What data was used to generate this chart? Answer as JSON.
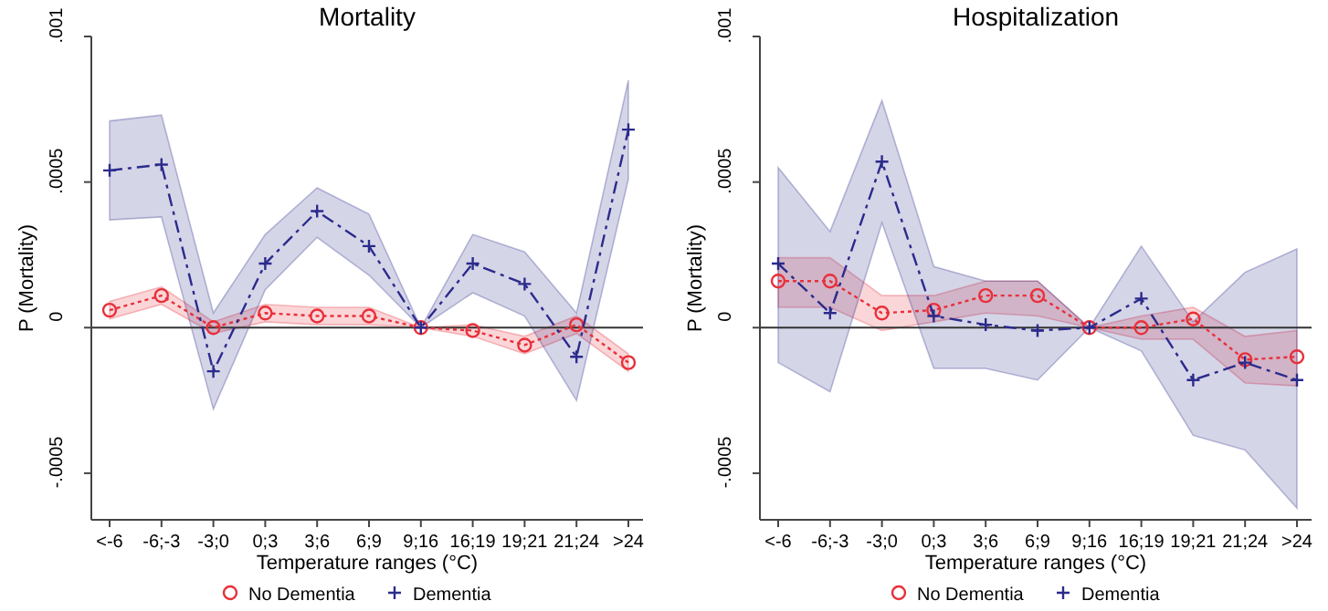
{
  "chart_data": [
    {
      "type": "line",
      "title": "Mortality",
      "xlabel": "Temperature ranges (°C)",
      "ylabel": "P (Mortality)",
      "categories": [
        "<-6",
        "-6;-3",
        "-3;0",
        "0;3",
        "3;6",
        "6;9",
        "9;16",
        "16;19",
        "19;21",
        "21;24",
        ">24"
      ],
      "ylim": [
        -0.00066,
        0.001
      ],
      "yticks": [
        {
          "value": -0.0005,
          "label": "-.0005"
        },
        0,
        {
          "value": 0.0005,
          "label": ".0005"
        },
        {
          "value": 0.001,
          "label": ".001"
        }
      ],
      "grid": false,
      "legend": "bottom",
      "ref_lines": [
        {
          "axis": "y",
          "value": 0,
          "color": "#333333"
        }
      ],
      "series": [
        {
          "name": "No Dementia",
          "color": "#e8303a",
          "marker": "circle",
          "line_style": "dotted",
          "values": [
            6e-05,
            0.00011,
            0,
            5e-05,
            4e-05,
            4e-05,
            0,
            -1e-05,
            -6e-05,
            1e-05,
            -0.00012
          ],
          "lower": [
            3e-05,
            8e-05,
            -2e-05,
            2e-05,
            1e-05,
            1e-05,
            0,
            -3e-05,
            -9e-05,
            -2e-05,
            -0.00015
          ],
          "upper": [
            9e-05,
            0.00014,
            2e-05,
            8e-05,
            7e-05,
            7e-05,
            0,
            1e-05,
            -3e-05,
            4e-05,
            -9e-05
          ]
        },
        {
          "name": "Dementia",
          "color": "#2b2b8c",
          "marker": "cross",
          "line_style": "dashed",
          "values": [
            0.00054,
            0.00056,
            -0.00015,
            0.00022,
            0.0004,
            0.00028,
            0,
            0.00022,
            0.00015,
            -0.0001,
            0.00068
          ],
          "lower": [
            0.00037,
            0.00038,
            -0.00028,
            0.00013,
            0.00031,
            0.00018,
            0,
            0.00012,
            4e-05,
            -0.00025,
            0.00051
          ],
          "upper": [
            0.00071,
            0.00073,
            5e-05,
            0.00032,
            0.00048,
            0.00039,
            0,
            0.00032,
            0.00026,
            5e-05,
            0.00085
          ]
        }
      ]
    },
    {
      "type": "line",
      "title": "Hospitalization",
      "xlabel": "Temperature ranges (°C)",
      "ylabel": "P (Mortality)",
      "categories": [
        "<-6",
        "-6;-3",
        "-3;0",
        "0;3",
        "3;6",
        "6;9",
        "9;16",
        "16;19",
        "19;21",
        "21;24",
        ">24"
      ],
      "ylim": [
        -0.00066,
        0.001
      ],
      "yticks": [
        {
          "value": -0.0005,
          "label": "-.0005"
        },
        0,
        {
          "value": 0.0005,
          "label": ".0005"
        },
        {
          "value": 0.001,
          "label": ".001"
        }
      ],
      "grid": false,
      "legend": "bottom",
      "ref_lines": [
        {
          "axis": "y",
          "value": 0,
          "color": "#333333"
        }
      ],
      "series": [
        {
          "name": "No Dementia",
          "color": "#e8303a",
          "marker": "circle",
          "line_style": "dotted",
          "values": [
            0.00016,
            0.00016,
            5e-05,
            6e-05,
            0.00011,
            0.00011,
            0,
            0,
            3e-05,
            -0.00011,
            -0.0001
          ],
          "lower": [
            7e-05,
            7e-05,
            -1e-05,
            2e-05,
            5e-05,
            4e-05,
            0,
            -4e-05,
            -4e-05,
            -0.00019,
            -0.0002
          ],
          "upper": [
            0.00024,
            0.00024,
            0.00011,
            0.00011,
            0.00016,
            0.00016,
            0,
            4e-05,
            7e-05,
            -3e-05,
            -1e-05
          ]
        },
        {
          "name": "Dementia",
          "color": "#2b2b8c",
          "marker": "cross",
          "line_style": "dashed",
          "values": [
            0.00022,
            5e-05,
            0.00057,
            4e-05,
            1e-05,
            -1e-05,
            0,
            0.0001,
            -0.00018,
            -0.00012,
            -0.00018
          ],
          "lower": [
            -0.00012,
            -0.00022,
            0.00036,
            -0.00014,
            -0.00014,
            -0.00018,
            0,
            -8e-05,
            -0.00037,
            -0.00042,
            -0.00062
          ],
          "upper": [
            0.00055,
            0.00033,
            0.00078,
            0.00021,
            0.00016,
            0.00016,
            0,
            0.00028,
            2e-05,
            0.00019,
            0.00027
          ]
        }
      ]
    }
  ]
}
